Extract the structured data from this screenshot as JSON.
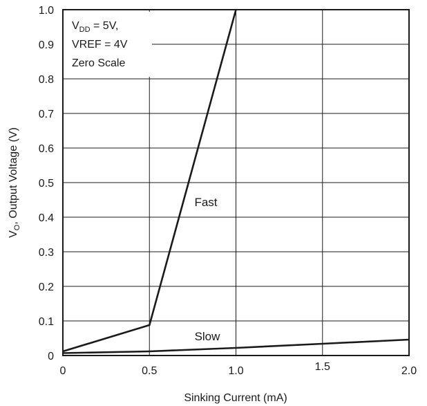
{
  "chart_data": {
    "type": "line",
    "title": "",
    "xlabel": "Sinking Current (mA)",
    "ylabel": "V",
    "ylabel_subscript": "O",
    "ylabel_rest": ", Output Voltage (V)",
    "xlim": [
      0,
      2.0
    ],
    "ylim": [
      0,
      1.0
    ],
    "x_ticks": [
      {
        "value": 0,
        "label": "0"
      },
      {
        "value": 0.5,
        "label": "0.5"
      },
      {
        "value": 1.0,
        "label": "1.0"
      },
      {
        "value": 1.5,
        "label": "1.5"
      },
      {
        "value": 2.0,
        "label": "2.0"
      }
    ],
    "y_ticks": [
      {
        "value": 0,
        "label": "0"
      },
      {
        "value": 0.1,
        "label": "0.1"
      },
      {
        "value": 0.2,
        "label": "0.2"
      },
      {
        "value": 0.3,
        "label": "0.3"
      },
      {
        "value": 0.4,
        "label": "0.4"
      },
      {
        "value": 0.5,
        "label": "0.5"
      },
      {
        "value": 0.6,
        "label": "0.6"
      },
      {
        "value": 0.7,
        "label": "0.7"
      },
      {
        "value": 0.8,
        "label": "0.8"
      },
      {
        "value": 0.9,
        "label": "0.9"
      },
      {
        "value": 1.0,
        "label": "1.0"
      }
    ],
    "grid": true,
    "series": [
      {
        "name": "Fast",
        "x": [
          0,
          0.5,
          1.0
        ],
        "y": [
          0.012,
          0.088,
          1.0
        ]
      },
      {
        "name": "Slow",
        "x": [
          0,
          0.5,
          1.0,
          1.5,
          2.0
        ],
        "y": [
          0.007,
          0.012,
          0.022,
          0.034,
          0.046
        ]
      }
    ],
    "annotation": {
      "line1_main": "V",
      "line1_sub": "DD",
      "line1_rest": " = 5V,",
      "line2": "VREF = 4V",
      "line3": "Zero Scale"
    },
    "colors": {
      "line": "#1a1a1a",
      "grid": "#1a1a1a",
      "background": "#ffffff"
    }
  }
}
